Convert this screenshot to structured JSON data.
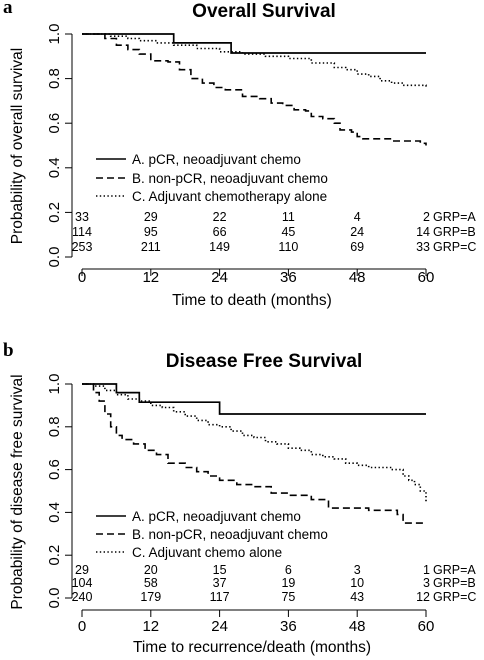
{
  "chart_data": [
    {
      "panel": "a",
      "type": "line",
      "subtype": "kaplan-meier",
      "title": "Overall Survival",
      "xlabel": "Time to death (months)",
      "ylabel": "Probability of overall survival",
      "xlim": [
        0,
        60
      ],
      "ylim": [
        0,
        1
      ],
      "xticks": [
        0,
        12,
        24,
        36,
        48,
        60
      ],
      "yticks": [
        "0.0",
        "0.2",
        "0.4",
        "0.6",
        "0.8",
        "1.0"
      ],
      "legend_position": "bottom-left",
      "series": [
        {
          "name": "A. pCR, neoadjuvant chemo",
          "style": "solid",
          "x": [
            0,
            16,
            26,
            60
          ],
          "y": [
            1.0,
            0.96,
            0.915,
            0.915
          ]
        },
        {
          "name": "B. non-pCR, neoadjuvant chemo",
          "style": "dashed",
          "x": [
            0,
            4,
            6,
            8,
            10,
            12,
            15,
            17,
            19,
            21,
            23,
            25,
            28,
            31,
            33,
            35,
            37,
            39,
            40,
            42,
            44,
            45,
            47,
            48,
            49,
            52,
            54,
            57,
            59,
            60
          ],
          "y": [
            1.0,
            0.98,
            0.95,
            0.93,
            0.91,
            0.88,
            0.875,
            0.84,
            0.8,
            0.78,
            0.76,
            0.75,
            0.72,
            0.71,
            0.69,
            0.68,
            0.66,
            0.655,
            0.63,
            0.62,
            0.6,
            0.57,
            0.56,
            0.54,
            0.53,
            0.53,
            0.52,
            0.52,
            0.51,
            0.5
          ]
        },
        {
          "name": "C. Adjuvant chemotherapy alone",
          "style": "dotted",
          "x": [
            0,
            5,
            8,
            10,
            13,
            16,
            20,
            24,
            28,
            32,
            36,
            40,
            44,
            46,
            48,
            50,
            52,
            54,
            56,
            60
          ],
          "y": [
            1.0,
            0.99,
            0.98,
            0.97,
            0.96,
            0.95,
            0.935,
            0.92,
            0.91,
            0.9,
            0.89,
            0.87,
            0.85,
            0.84,
            0.82,
            0.81,
            0.79,
            0.78,
            0.77,
            0.76
          ]
        }
      ],
      "at_risk": {
        "times": [
          0,
          12,
          24,
          36,
          48,
          60
        ],
        "rows": [
          {
            "label": "GRP=A",
            "values": [
              "33",
              "29",
              "22",
              "11",
              "4",
              "2"
            ]
          },
          {
            "label": "GRP=B",
            "values": [
              "114",
              "95",
              "66",
              "45",
              "24",
              "14"
            ]
          },
          {
            "label": "GRP=C",
            "values": [
              "253",
              "211",
              "149",
              "110",
              "69",
              "33"
            ]
          }
        ]
      }
    },
    {
      "panel": "b",
      "type": "line",
      "subtype": "kaplan-meier",
      "title": "Disease Free Survival",
      "xlabel": "Time to recurrence/death (months)",
      "ylabel": "Probability of disease free survival",
      "xlim": [
        0,
        60
      ],
      "ylim": [
        0,
        1
      ],
      "xticks": [
        0,
        12,
        24,
        36,
        48,
        60
      ],
      "yticks": [
        "0.0",
        "0.2",
        "0.4",
        "0.6",
        "0.8",
        "1.0"
      ],
      "legend_position": "bottom-left",
      "series": [
        {
          "name": "A. pCR, neoadjuvant chemo",
          "style": "solid",
          "x": [
            0,
            4,
            6,
            10,
            18,
            24,
            60
          ],
          "y": [
            1.0,
            1.0,
            0.96,
            0.915,
            0.915,
            0.86,
            0.86
          ]
        },
        {
          "name": "B. non-pCR, neoadjuvant chemo",
          "style": "dashed",
          "x": [
            0,
            2,
            3,
            4,
            5,
            6,
            7,
            9,
            11,
            13,
            15,
            18,
            20,
            22,
            24,
            27,
            30,
            33,
            36,
            40,
            43,
            47,
            50,
            53,
            55,
            56,
            60
          ],
          "y": [
            1.0,
            0.96,
            0.92,
            0.86,
            0.8,
            0.76,
            0.74,
            0.72,
            0.69,
            0.67,
            0.63,
            0.61,
            0.59,
            0.57,
            0.55,
            0.53,
            0.52,
            0.49,
            0.48,
            0.46,
            0.42,
            0.42,
            0.41,
            0.41,
            0.39,
            0.35,
            0.35
          ]
        },
        {
          "name": "C. Adjuvant chemo alone",
          "style": "dotted",
          "x": [
            0,
            2,
            4,
            6,
            8,
            10,
            12,
            14,
            16,
            18,
            20,
            22,
            24,
            26,
            28,
            30,
            32,
            34,
            36,
            38,
            40,
            42,
            44,
            46,
            48,
            50,
            52,
            54,
            56,
            57,
            58,
            59,
            60
          ],
          "y": [
            1.0,
            0.99,
            0.97,
            0.95,
            0.93,
            0.92,
            0.9,
            0.89,
            0.87,
            0.85,
            0.83,
            0.81,
            0.8,
            0.78,
            0.76,
            0.75,
            0.73,
            0.72,
            0.7,
            0.69,
            0.67,
            0.66,
            0.65,
            0.63,
            0.62,
            0.61,
            0.61,
            0.6,
            0.57,
            0.55,
            0.53,
            0.5,
            0.45
          ]
        }
      ],
      "at_risk": {
        "times": [
          0,
          12,
          24,
          36,
          48,
          60
        ],
        "rows": [
          {
            "label": "GRP=A",
            "values": [
              "29",
              "20",
              "15",
              "6",
              "3",
              "1"
            ]
          },
          {
            "label": "GRP=B",
            "values": [
              "104",
              "58",
              "37",
              "19",
              "10",
              "3"
            ]
          },
          {
            "label": "GRP=C",
            "values": [
              "240",
              "179",
              "117",
              "75",
              "43",
              "12"
            ]
          }
        ]
      }
    }
  ]
}
